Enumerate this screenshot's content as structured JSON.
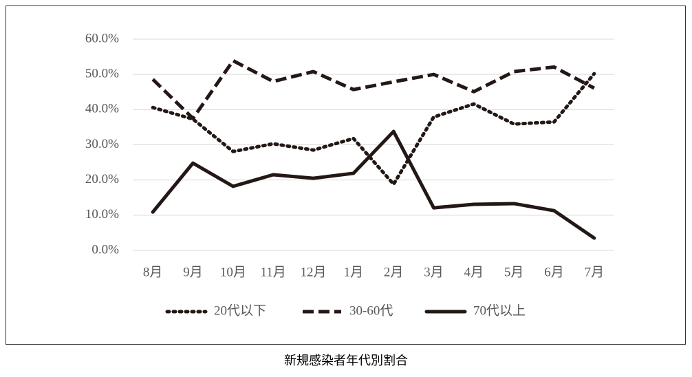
{
  "chart_data": {
    "type": "line",
    "title": "新規感染者年代別割合",
    "categories": [
      "8月",
      "9月",
      "10月",
      "11月",
      "12月",
      "1月",
      "2月",
      "3月",
      "4月",
      "5月",
      "6月",
      "7月"
    ],
    "series": [
      {
        "name": "20代以下",
        "color": "#231815",
        "dash": "dotted",
        "values": [
          40.6,
          37.3,
          28.1,
          30.3,
          28.5,
          31.8,
          18.8,
          37.9,
          41.6,
          35.9,
          36.5,
          50.2
        ]
      },
      {
        "name": "30-60代",
        "color": "#231815",
        "dash": "dashed",
        "values": [
          48.6,
          37.5,
          53.9,
          48.0,
          50.8,
          45.7,
          47.9,
          50.0,
          45.1,
          50.8,
          52.1,
          46.1
        ]
      },
      {
        "name": "70代以上",
        "color": "#231815",
        "dash": "solid",
        "values": [
          10.9,
          24.8,
          18.2,
          21.5,
          20.5,
          21.9,
          33.8,
          12.1,
          13.1,
          13.3,
          11.3,
          3.5
        ]
      }
    ],
    "ylim": [
      0,
      60
    ],
    "yticks": [
      {
        "value": 0,
        "label": "0.0%"
      },
      {
        "value": 10,
        "label": "10.0%"
      },
      {
        "value": 20,
        "label": "20.0%"
      },
      {
        "value": 30,
        "label": "30.0%"
      },
      {
        "value": 40,
        "label": "40.0%"
      },
      {
        "value": 50,
        "label": "50.0%"
      },
      {
        "value": 60,
        "label": "60.0%"
      }
    ],
    "grid": true,
    "legend": "bottom"
  }
}
